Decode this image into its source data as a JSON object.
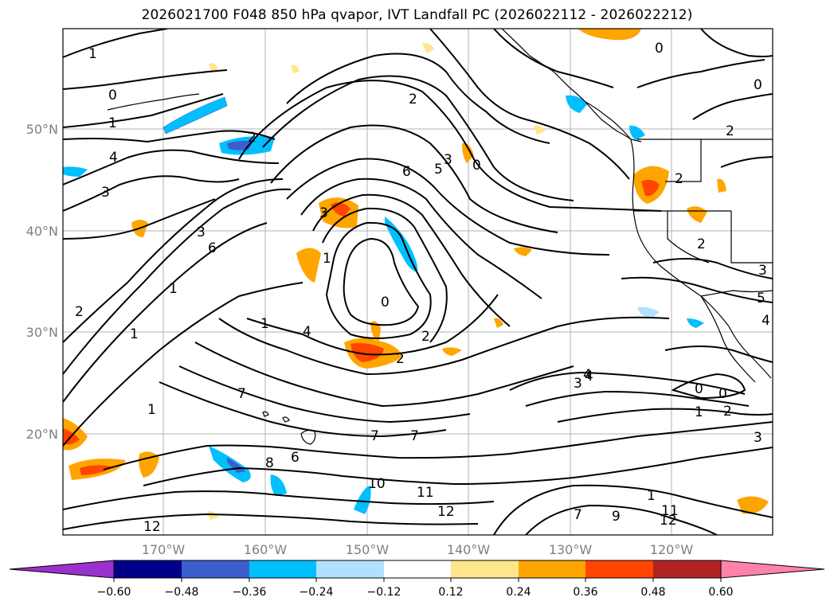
{
  "title": "2026021700 F048 850 hPa qvapor, IVT Landfall PC (2026022112 - 2026022212)",
  "colors": {
    "coast": "#000000",
    "grid": "#b0b0b0",
    "contour": "#000000",
    "tick_text": "#7f7f7f"
  },
  "map": {
    "lat_labels": [
      "50°N",
      "40°N",
      "30°N",
      "20°N"
    ],
    "lon_labels": [
      "170°W",
      "160°W",
      "150°W",
      "140°W",
      "130°W",
      "120°W"
    ],
    "contour_labels": [
      "1",
      "0",
      "1",
      "2",
      "4",
      "3",
      "2",
      "3",
      "6",
      "1",
      "2",
      "1",
      "3",
      "1",
      "4",
      "2",
      "2",
      "0",
      "5",
      "3",
      "0",
      "2",
      "2",
      "0",
      "2",
      "3",
      "4",
      "3",
      "4",
      "0",
      "0",
      "1",
      "2",
      "5",
      "3",
      "7",
      "7",
      "7",
      "6",
      "8",
      "10",
      "11",
      "12",
      "12",
      "9",
      "11",
      "12",
      "7",
      "4",
      "1",
      "6",
      "0",
      "1",
      "1"
    ]
  },
  "colorbar": {
    "ticks": [
      "−0.60",
      "−0.48",
      "−0.36",
      "−0.24",
      "−0.12",
      "0.12",
      "0.24",
      "0.36",
      "0.48",
      "0.60"
    ],
    "bins": [
      {
        "range": "< -0.60",
        "color": "#9932cc"
      },
      {
        "range": "-0.60 to -0.48",
        "color": "#00008b"
      },
      {
        "range": "-0.48 to -0.36",
        "color": "#3a5fcd"
      },
      {
        "range": "-0.36 to -0.24",
        "color": "#00bfff"
      },
      {
        "range": "-0.24 to -0.12",
        "color": "#b0e2ff"
      },
      {
        "range": "-0.12 to 0.12",
        "color": "#ffffff"
      },
      {
        "range": "0.12 to 0.24",
        "color": "#ffe68c"
      },
      {
        "range": "0.24 to 0.36",
        "color": "#ffa500"
      },
      {
        "range": "0.36 to 0.48",
        "color": "#ff4500"
      },
      {
        "range": "0.48 to 0.60",
        "color": "#b22222"
      },
      {
        "range": "> 0.60",
        "color": "#ff82ab"
      }
    ]
  }
}
